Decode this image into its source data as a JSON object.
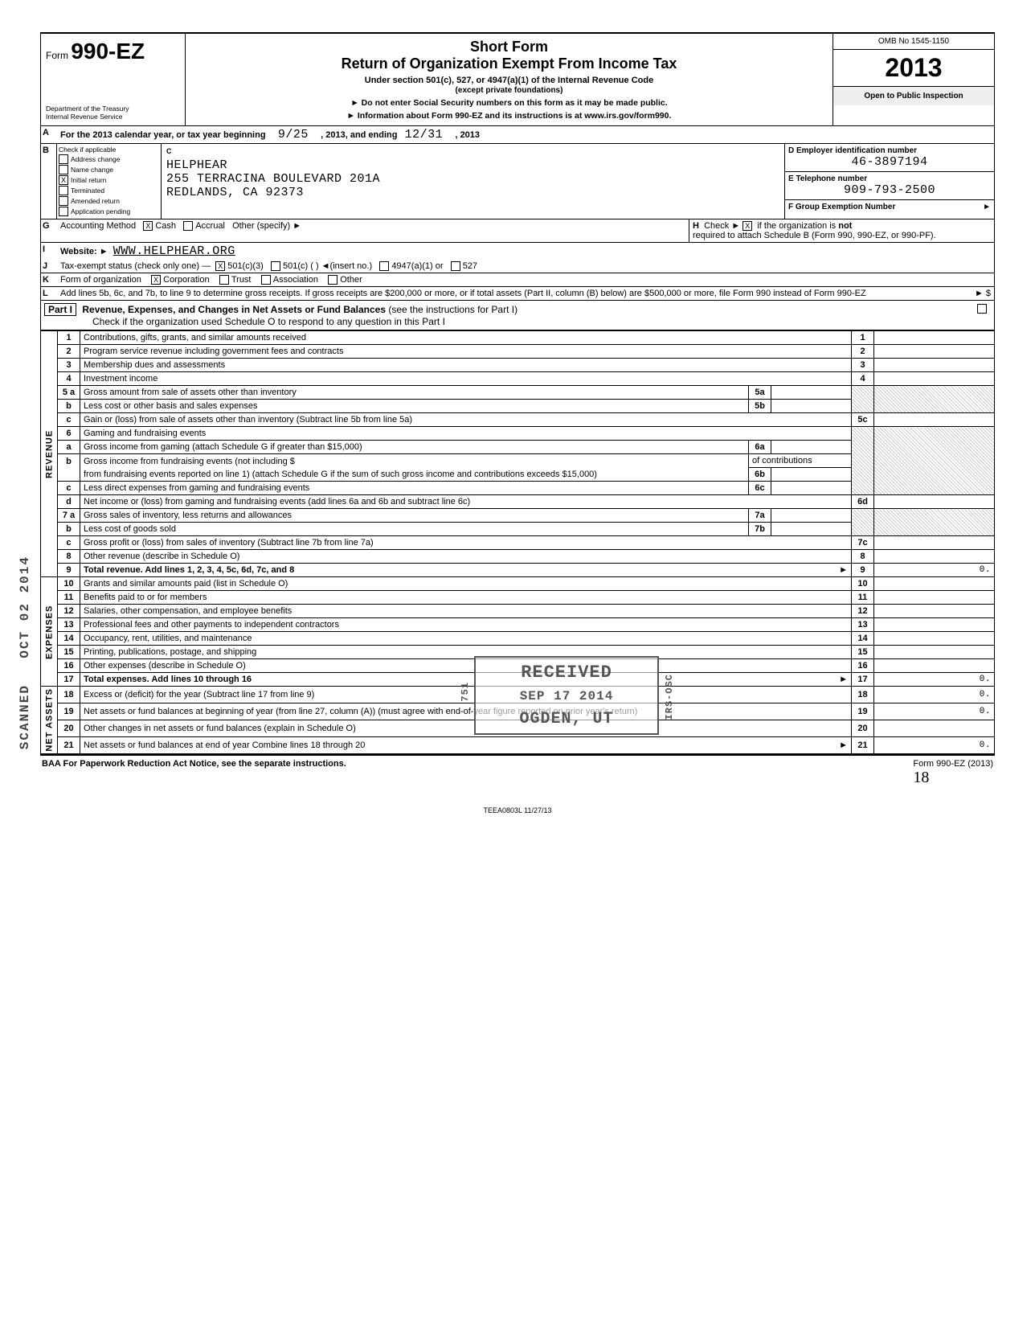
{
  "header": {
    "form_prefix": "Form",
    "form_number": "990-EZ",
    "dept_line1": "Department of the Treasury",
    "dept_line2": "Internal Revenue Service",
    "title_short": "Short Form",
    "title_main": "Return of Organization Exempt From Income Tax",
    "subtitle_bold": "Under section 501(c), 527, or 4947(a)(1) of the Internal Revenue Code",
    "subtitle_paren": "(except private foundations)",
    "warn": "► Do not enter Social Security numbers on this form as it may be made public.",
    "info": "► Information about Form 990-EZ and its instructions is at www.irs.gov/form990.",
    "omb": "OMB No 1545-1150",
    "year": "2013",
    "open": "Open to Public Inspection"
  },
  "line_A": {
    "text_a": "For the 2013 calendar year, or tax year beginning",
    "begin": "9/25",
    "text_b": ", 2013, and ending",
    "end": "12/31",
    "text_c": ", 2013"
  },
  "section_B": {
    "label": "Check if applicable",
    "items": [
      {
        "label": "Address change",
        "checked": false
      },
      {
        "label": "Name change",
        "checked": false
      },
      {
        "label": "Initial return",
        "checked": true
      },
      {
        "label": "Terminated",
        "checked": false
      },
      {
        "label": "Amended return",
        "checked": false
      },
      {
        "label": "Application pending",
        "checked": false
      }
    ],
    "c_label": "C",
    "name": "HELPHEAR",
    "addr1": "255 TERRACINA BOULEVARD 201A",
    "addr2": "REDLANDS, CA 92373",
    "d_label": "D  Employer identification number",
    "d_val": "46-3897194",
    "e_label": "E  Telephone number",
    "e_val": "909-793-2500",
    "f_label": "F  Group Exemption Number",
    "f_arrow": "►"
  },
  "line_G": {
    "label": "Accounting Method",
    "cash": "Cash",
    "cash_checked": true,
    "accrual": "Accrual",
    "other": "Other (specify) ►"
  },
  "line_H": {
    "text1": "Check ►",
    "checked": true,
    "text2": "if the organization is",
    "not": "not",
    "text3": "required to attach Schedule B (Form 990, 990-EZ, or 990-PF)."
  },
  "line_I": {
    "label": "Website: ►",
    "val": "WWW.HELPHEAR.ORG"
  },
  "line_J": {
    "label": "Tax-exempt status (check only one) —",
    "opts": [
      {
        "label": "501(c)(3)",
        "checked": true
      },
      {
        "label": "501(c) (        ) ◄(insert no.)",
        "checked": false
      },
      {
        "label": "4947(a)(1) or",
        "checked": false
      },
      {
        "label": "527",
        "checked": false
      }
    ]
  },
  "line_K": {
    "label": "Form of organization",
    "opts": [
      {
        "label": "Corporation",
        "checked": true
      },
      {
        "label": "Trust",
        "checked": false
      },
      {
        "label": "Association",
        "checked": false
      },
      {
        "label": "Other",
        "checked": false
      }
    ]
  },
  "line_L": {
    "text": "Add lines 5b, 6c, and 7b, to line 9 to determine gross receipts. If gross receipts are $200,000 or more, or if total assets (Part II, column (B) below) are $500,000 or more, file Form 990 instead of Form 990-EZ",
    "arrow": "► $"
  },
  "part1": {
    "label": "Part I",
    "title": "Revenue, Expenses, and Changes in Net Assets or Fund Balances",
    "paren": "(see the instructions for Part I)",
    "sub": "Check if the organization used Schedule O to respond to any question in this Part I"
  },
  "revenue_side": "REVENUE",
  "expense_side": "EXPENSES",
  "net_side": "NET ASSETS",
  "stamp_side1": "OCT 02 2014",
  "stamp_side2": "SCANNED",
  "rows": {
    "r1": {
      "n": "1",
      "t": "Contributions, gifts, grants, and similar amounts received",
      "box": "1",
      "amt": ""
    },
    "r2": {
      "n": "2",
      "t": "Program service revenue including government fees and contracts",
      "box": "2",
      "amt": ""
    },
    "r3": {
      "n": "3",
      "t": "Membership dues and assessments",
      "box": "3",
      "amt": ""
    },
    "r4": {
      "n": "4",
      "t": "Investment income",
      "box": "4",
      "amt": ""
    },
    "r5a": {
      "n": "5 a",
      "t": "Gross amount from sale of assets other than inventory",
      "sb": "5a"
    },
    "r5b": {
      "n": "b",
      "t": "Less  cost or other basis and sales expenses",
      "sb": "5b"
    },
    "r5c": {
      "n": "c",
      "t": "Gain or (loss) from sale of assets other than inventory (Subtract line 5b from line 5a)",
      "box": "5c",
      "amt": ""
    },
    "r6": {
      "n": "6",
      "t": "Gaming and fundraising events"
    },
    "r6a": {
      "n": "a",
      "t": "Gross income from gaming (attach Schedule G if greater than $15,000)",
      "sb": "6a"
    },
    "r6b": {
      "n": "b",
      "t": "Gross income from fundraising events (not including $",
      "contrib": "of contributions",
      "t2": "from fundraising events reported on line 1) (attach Schedule G if the sum of such gross income and contributions exceeds $15,000)",
      "sb": "6b"
    },
    "r6c": {
      "n": "c",
      "t": "Less  direct expenses from gaming and fundraising events",
      "sb": "6c"
    },
    "r6d": {
      "n": "d",
      "t": "Net income or (loss) from gaming and fundraising events (add lines 6a and 6b and subtract line 6c)",
      "box": "6d",
      "amt": ""
    },
    "r7a": {
      "n": "7 a",
      "t": "Gross sales of inventory, less returns and allowances",
      "sb": "7a"
    },
    "r7b": {
      "n": "b",
      "t": "Less  cost of goods sold",
      "sb": "7b"
    },
    "r7c": {
      "n": "c",
      "t": "Gross profit or (loss) from sales of inventory (Subtract line 7b from line 7a)",
      "box": "7c",
      "amt": ""
    },
    "r8": {
      "n": "8",
      "t": "Other revenue (describe in Schedule O)",
      "box": "8",
      "amt": ""
    },
    "r9": {
      "n": "9",
      "t": "Total revenue. Add lines 1, 2, 3, 4, 5c, 6d, 7c, and 8",
      "box": "9",
      "amt": "0.",
      "arrow": "►"
    },
    "r10": {
      "n": "10",
      "t": "Grants and similar amounts paid (list in Schedule O)",
      "box": "10",
      "amt": ""
    },
    "r11": {
      "n": "11",
      "t": "Benefits paid to or for members",
      "box": "11",
      "amt": ""
    },
    "r12": {
      "n": "12",
      "t": "Salaries, other compensation, and employee benefits",
      "box": "12",
      "amt": ""
    },
    "r13": {
      "n": "13",
      "t": "Professional fees and other payments to independent contractors",
      "box": "13",
      "amt": ""
    },
    "r14": {
      "n": "14",
      "t": "Occupancy, rent, utilities, and maintenance",
      "box": "14",
      "amt": ""
    },
    "r15": {
      "n": "15",
      "t": "Printing, publications, postage, and shipping",
      "box": "15",
      "amt": ""
    },
    "r16": {
      "n": "16",
      "t": "Other expenses (describe in Schedule O)",
      "box": "16",
      "amt": ""
    },
    "r17": {
      "n": "17",
      "t": "Total expenses. Add lines 10 through 16",
      "box": "17",
      "amt": "0.",
      "arrow": "►"
    },
    "r18": {
      "n": "18",
      "t": "Excess or (deficit) for the year (Subtract line 17 from line 9)",
      "box": "18",
      "amt": "0."
    },
    "r19": {
      "n": "19",
      "t": "Net assets or fund balances at beginning of year (from line 27, column (A)) (must agree with end-of-year figure reported on prior year's return)",
      "box": "19",
      "amt": "0."
    },
    "r20": {
      "n": "20",
      "t": "Other changes in net assets or fund balances (explain in Schedule O)",
      "box": "20",
      "amt": ""
    },
    "r21": {
      "n": "21",
      "t": "Net assets or fund balances at end of year  Combine lines 18 through 20",
      "box": "21",
      "amt": "0.",
      "arrow": "►"
    }
  },
  "stamp": {
    "l1": "RECEIVED",
    "l2": "SEP 17 2014",
    "l3": "OGDEN, UT",
    "side_num": "751",
    "side_txt": "IRS-OSC"
  },
  "footer": {
    "left": "BAA  For Paperwork Reduction Act Notice, see the separate instructions.",
    "right": "Form 990-EZ (2013)",
    "print_id": "TEEA0803L   11/27/13",
    "scribble": "18"
  }
}
